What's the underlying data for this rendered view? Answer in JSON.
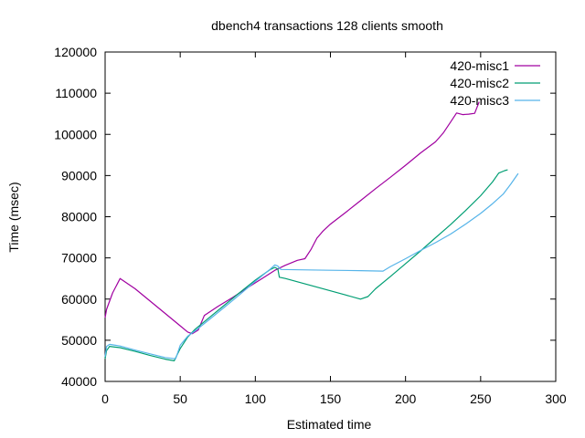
{
  "chart_data": {
    "type": "line",
    "title": "dbench4 transactions 128 clients smooth",
    "xlabel": "Estimated time",
    "ylabel": "Time (msec)",
    "xlim": [
      0,
      300
    ],
    "ylim": [
      40000,
      120000
    ],
    "xticks": [
      0,
      50,
      100,
      150,
      200,
      250,
      300
    ],
    "yticks": [
      40000,
      50000,
      60000,
      70000,
      80000,
      90000,
      100000,
      110000,
      120000
    ],
    "x_tick_labels": [
      "0",
      "50",
      "100",
      "150",
      "200",
      "250",
      "300"
    ],
    "y_tick_labels": [
      "40000",
      "50000",
      "60000",
      "70000",
      "80000",
      "90000",
      "100000",
      "110000",
      "120000"
    ],
    "grid": false,
    "legend_position": "top-right",
    "series": [
      {
        "name": "420-misc1",
        "color": "#a000a0",
        "x": [
          0,
          1,
          5,
          10,
          20,
          30,
          40,
          50,
          55,
          58,
          62,
          66,
          75,
          85,
          95,
          105,
          113,
          120,
          128,
          133,
          137,
          141,
          145,
          150,
          160,
          170,
          180,
          190,
          200,
          210,
          220,
          225,
          230,
          234,
          238,
          242,
          246,
          249
        ],
        "y": [
          55500,
          57500,
          61500,
          65000,
          62500,
          59500,
          56500,
          53500,
          52000,
          51600,
          52500,
          56000,
          58200,
          60400,
          62800,
          65100,
          67000,
          68200,
          69400,
          69800,
          72000,
          74800,
          76500,
          78200,
          81000,
          83900,
          86800,
          89600,
          92500,
          95500,
          98200,
          100300,
          103000,
          105200,
          104800,
          104900,
          105100,
          107900
        ]
      },
      {
        "name": "420-misc2",
        "color": "#009e73",
        "x": [
          0,
          1,
          3,
          10,
          20,
          30,
          40,
          46,
          50,
          55,
          60,
          70,
          80,
          90,
          100,
          110,
          113,
          115,
          116,
          120,
          130,
          140,
          150,
          160,
          170,
          175,
          180,
          190,
          200,
          210,
          220,
          230,
          240,
          250,
          258,
          262,
          266,
          268
        ],
        "y": [
          45500,
          47500,
          48500,
          48200,
          47300,
          46300,
          45400,
          45000,
          48000,
          50800,
          52700,
          55700,
          58700,
          61700,
          64600,
          67200,
          67700,
          67300,
          65300,
          65000,
          64000,
          63000,
          62000,
          61000,
          60000,
          60600,
          62500,
          65500,
          68600,
          71700,
          74900,
          78100,
          81500,
          85100,
          88500,
          90600,
          91200,
          91400
        ]
      },
      {
        "name": "420-misc3",
        "color": "#56b4e9",
        "x": [
          0,
          1,
          3,
          10,
          20,
          30,
          40,
          47,
          50,
          55,
          60,
          70,
          80,
          90,
          100,
          110,
          113,
          115,
          117,
          130,
          150,
          170,
          185,
          190,
          200,
          210,
          220,
          230,
          240,
          250,
          258,
          265,
          270,
          275
        ],
        "y": [
          46000,
          48500,
          49000,
          48600,
          47600,
          46700,
          45800,
          45500,
          48800,
          51000,
          52300,
          55200,
          58200,
          61200,
          64300,
          67300,
          68300,
          68000,
          67200,
          67100,
          67000,
          66900,
          66800,
          67900,
          69800,
          71800,
          73700,
          75800,
          78200,
          80800,
          83200,
          85500,
          87900,
          90500
        ]
      }
    ]
  }
}
